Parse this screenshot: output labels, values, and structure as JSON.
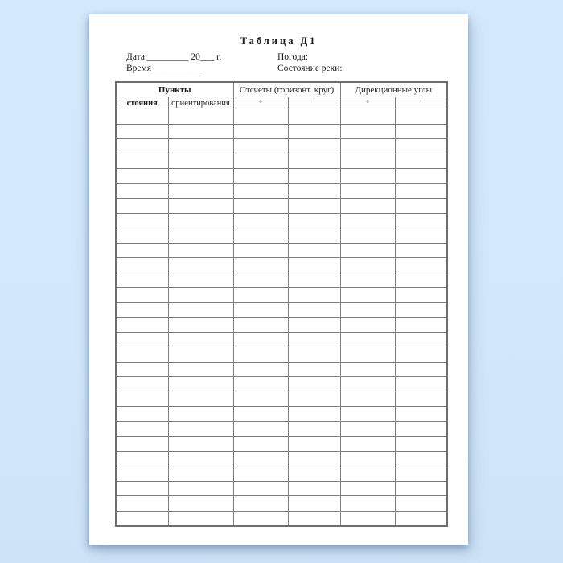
{
  "document": {
    "title": "Таблица Д1",
    "meta": {
      "date_line": "Дата _________ 20___ г.",
      "time_line": "Время ___________",
      "weather_label": "Погода:",
      "river_state_label": "Состояние реки:"
    },
    "table": {
      "column_groups": [
        {
          "label": "Пункты",
          "span": 2
        },
        {
          "label": "Отсчеты (горизонт. круг)",
          "span": 2
        },
        {
          "label": "Дирекционные углы",
          "span": 2
        }
      ],
      "subheaders": [
        "стояния",
        "ориентирования",
        "°",
        "′",
        "°",
        "′"
      ],
      "empty_row_count": 28,
      "columns_per_row": 6
    }
  },
  "colors": {
    "background_blue": "#d3e7fb",
    "paper_white": "#ffffff",
    "table_border_gray": "#7d7d7d",
    "text_black": "#1c1c1c"
  }
}
